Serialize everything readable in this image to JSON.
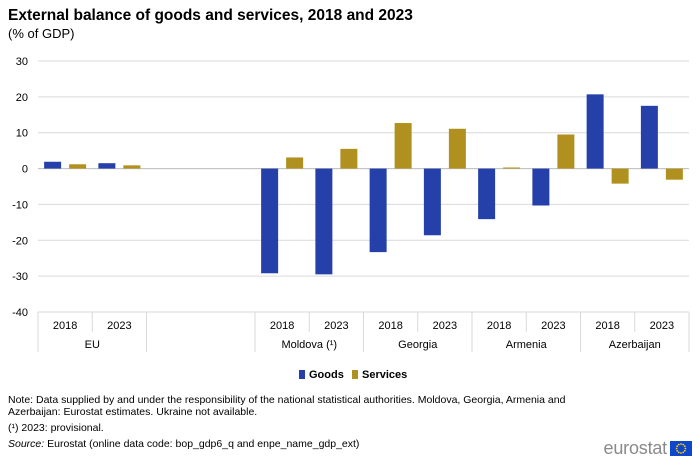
{
  "header": {
    "title": "External balance of goods and services, 2018 and 2023",
    "subtitle": "(% of GDP)"
  },
  "chart_data": {
    "type": "bar",
    "title": "External balance of goods and services, 2018 and 2023",
    "subtitle": "(% of GDP)",
    "ylim": [
      -40,
      30
    ],
    "yticks": [
      30,
      20,
      10,
      0,
      -10,
      -20,
      -30,
      -40
    ],
    "grid": true,
    "groups": [
      {
        "name": "EU",
        "years": [
          "2018",
          "2023"
        ]
      },
      {
        "name": "",
        "years": []
      },
      {
        "name": "Moldova (¹)",
        "years": [
          "2018",
          "2023"
        ]
      },
      {
        "name": "Georgia",
        "years": [
          "2018",
          "2023"
        ]
      },
      {
        "name": "Armenia",
        "years": [
          "2018",
          "2023"
        ]
      },
      {
        "name": "Azerbaijan",
        "years": [
          "2018",
          "2023"
        ]
      }
    ],
    "series": [
      {
        "name": "Goods",
        "color": "#2640aa",
        "values": [
          1.9,
          1.5,
          null,
          null,
          -29.2,
          -29.5,
          -23.3,
          -18.6,
          -14.1,
          -10.3,
          20.7,
          17.5
        ]
      },
      {
        "name": "Services",
        "color": "#b09120",
        "values": [
          1.2,
          0.9,
          null,
          null,
          3.1,
          5.5,
          12.7,
          11.1,
          0.3,
          9.5,
          -4.2,
          -3.1
        ]
      }
    ],
    "legend_position": "bottom-center"
  },
  "notes": {
    "note": "Note: Data supplied by and under the responsibility of the national statistical authorities. Moldova, Georgia, Armenia and Azerbaijan: Eurostat estimates. Ukraine not available.",
    "footnote": "(¹) 2023: provisional.",
    "source_label": "Source:",
    "source_text": " Eurostat (online data code: bop_gdp6_q and enpe_name_gdp_ext)"
  },
  "logo": {
    "text": "eurostat",
    "icon": "eu-flag-icon"
  }
}
